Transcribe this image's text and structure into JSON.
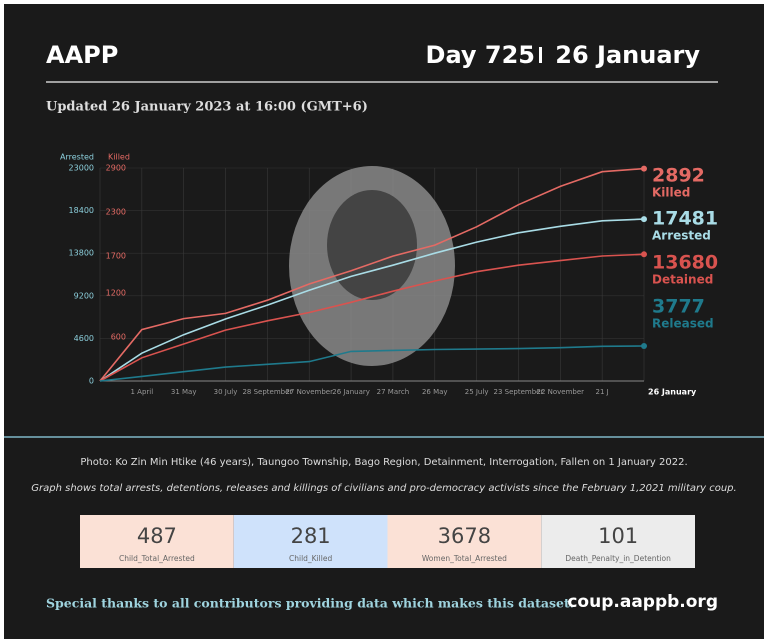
{
  "header": {
    "title": "AAPP",
    "day": "Day 725",
    "date": "26 January",
    "updated": "Updated 26 January 2023 at 16:00 (GMT+6)"
  },
  "chart_data": {
    "type": "line",
    "y_axis_label": "Arrested",
    "y2_axis_label": "Killed",
    "categories": [
      null,
      "1 April",
      "31 May",
      "30 July",
      "28 September",
      "27 November",
      "26 January",
      "27 March",
      "26 May",
      "25 July",
      "23 September",
      "22 November",
      "21 J",
      "26 January"
    ],
    "ylim": [
      0,
      23000
    ],
    "yticks": [
      0,
      4600,
      9200,
      13800,
      18400,
      23000
    ],
    "y2lim": [
      0,
      2900
    ],
    "y2ticks": [
      600,
      1200,
      1700,
      2300,
      2900
    ],
    "grid": true,
    "series": [
      {
        "name": "Killed",
        "color": "#e46a64",
        "axis": "y2",
        "values": [
          0,
          700,
          850,
          920,
          1100,
          1320,
          1500,
          1700,
          1850,
          2100,
          2400,
          2650,
          2850,
          2892
        ]
      },
      {
        "name": "Arrested",
        "color": "#a9dce6",
        "values": [
          0,
          3000,
          5000,
          6700,
          8200,
          9800,
          11300,
          12500,
          13800,
          15000,
          16000,
          16700,
          17300,
          17481
        ]
      },
      {
        "name": "Detained",
        "color": "#d9534f",
        "values": [
          0,
          2500,
          4000,
          5500,
          6500,
          7400,
          8500,
          9700,
          10800,
          11800,
          12500,
          13000,
          13500,
          13680
        ]
      },
      {
        "name": "Released",
        "color": "#1f7a8c",
        "values": [
          0,
          500,
          1000,
          1500,
          1800,
          2100,
          3200,
          3300,
          3400,
          3450,
          3500,
          3600,
          3750,
          3777
        ]
      }
    ]
  },
  "captions": {
    "photo": "Photo:  Ko Zin Min Htike (46 years), Taungoo Township, Bago Region, Detainment, Interrogation, Fallen on 1 January 2022.",
    "graph": "Graph shows total arrests, detentions, releases and killings of civilians and pro-democracy activists since the February 1,2021 military coup."
  },
  "stats": [
    {
      "value": 487,
      "label": "Child_Total_Arrested"
    },
    {
      "value": 281,
      "label": "Child_Killed"
    },
    {
      "value": 3678,
      "label": "Women_Total_Arrested"
    },
    {
      "value": 101,
      "label": "Death_Penalty_in_Detention"
    }
  ],
  "footer": {
    "thanks": "Special thanks to all contributors providing data which makes this dataset.",
    "site": "coup.aappb.org"
  }
}
